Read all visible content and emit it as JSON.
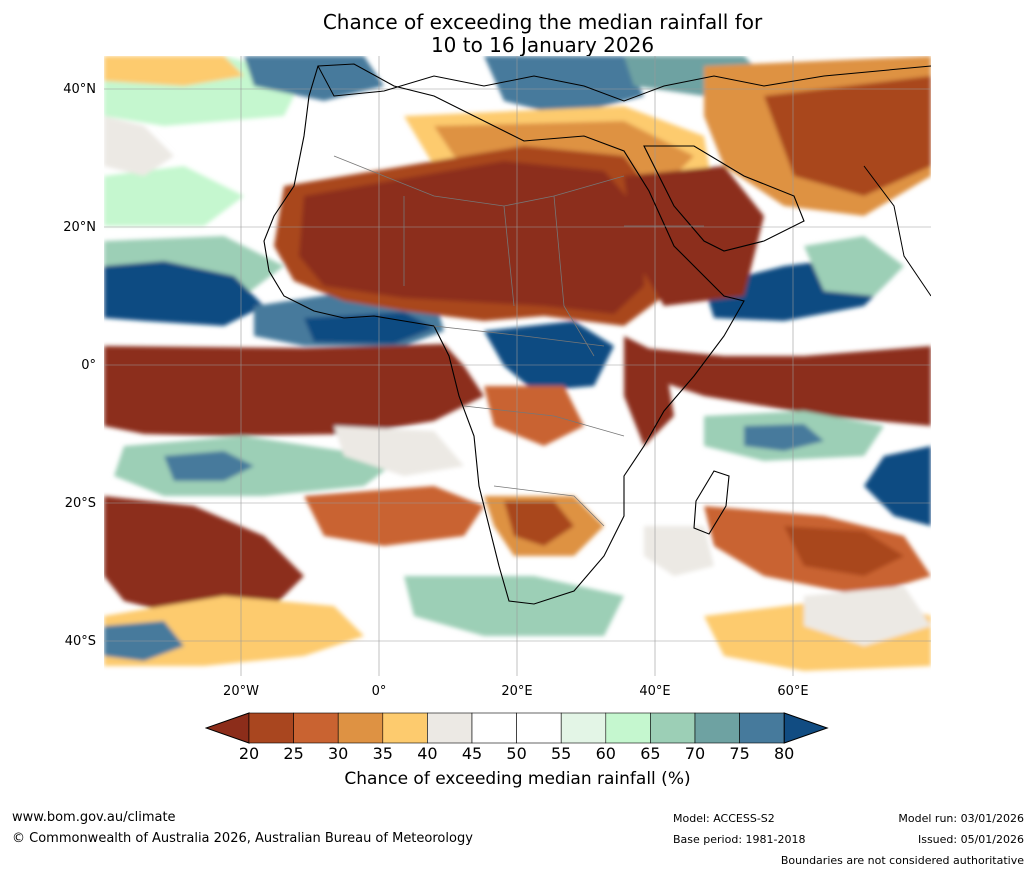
{
  "title": {
    "line1": "Chance of exceeding the median rainfall for",
    "line2": "10 to 16 January 2026"
  },
  "map": {
    "lat_labels": [
      "40°N",
      "20°N",
      "0°",
      "20°S",
      "40°S"
    ],
    "lon_labels": [
      "20°W",
      "0°",
      "20°E",
      "40°E",
      "60°E"
    ]
  },
  "colorbar": {
    "ticks": [
      "20",
      "25",
      "30",
      "35",
      "40",
      "45",
      "50",
      "55",
      "60",
      "65",
      "70",
      "75",
      "80"
    ],
    "colors": [
      "#8c2d1a",
      "#a9461f",
      "#c96331",
      "#de9243",
      "#fdcb6e",
      "#ece9e4",
      "#ffffff",
      "#ffffff",
      "#e3f5e6",
      "#c5f7cf",
      "#9ccfb6",
      "#6ea2a2",
      "#467a9c",
      "#114c82"
    ],
    "title": "Chance of exceeding median rainfall (%)"
  },
  "footer": {
    "url": "www.bom.gov.au/climate",
    "copyright": "© Commonwealth of Australia 2026, Australian Bureau of Meteorology",
    "model": "Model: ACCESS-S2",
    "base_period": "Base period: 1981-2018",
    "model_run": "Model run: 03/01/2026",
    "issued": "Issued: 05/01/2026",
    "disclaimer": "Boundaries are not considered authoritative"
  }
}
